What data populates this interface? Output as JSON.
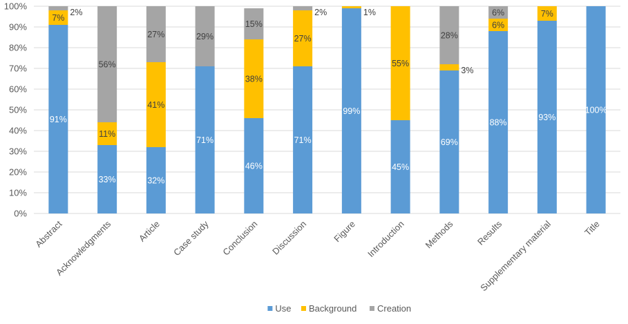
{
  "chart_data": {
    "type": "bar",
    "stacked": true,
    "percent_axis": true,
    "categories": [
      "Abstract",
      "Acknowledgments",
      "Article",
      "Case study",
      "Conclusion",
      "Discussion",
      "Figure",
      "Introduction",
      "Methods",
      "Results",
      "Supplementary material",
      "Title"
    ],
    "series": [
      {
        "name": "Use",
        "color": "#5B9BD5",
        "label_color": "#ffffff",
        "values": [
          91,
          33,
          32,
          71,
          46,
          71,
          99,
          45,
          69,
          88,
          93,
          100
        ],
        "labels": [
          "91%",
          "33%",
          "32%",
          "71%",
          "46%",
          "71%",
          "99%",
          "45%",
          "69%",
          "88%",
          "93%",
          "100%"
        ]
      },
      {
        "name": "Background",
        "color": "#FFC000",
        "label_color": "#404040",
        "values": [
          7,
          11,
          41,
          0,
          38,
          27,
          1,
          55,
          3,
          6,
          7,
          0
        ],
        "labels": [
          "7%",
          "11%",
          "41%",
          "",
          "38%",
          "27%",
          "1%",
          "55%",
          "3%",
          "6%",
          "7%",
          ""
        ]
      },
      {
        "name": "Creation",
        "color": "#A5A5A5",
        "label_color": "#404040",
        "values": [
          2,
          56,
          27,
          29,
          15,
          2,
          0,
          0,
          28,
          6,
          0,
          0
        ],
        "labels": [
          "2%",
          "56%",
          "27%",
          "29%",
          "15%",
          "2%",
          "",
          "",
          "28%",
          "6%",
          "",
          ""
        ]
      }
    ],
    "yticks": [
      "0%",
      "10%",
      "20%",
      "30%",
      "40%",
      "50%",
      "60%",
      "70%",
      "80%",
      "90%",
      "100%"
    ],
    "ylim": [
      0,
      100
    ],
    "grid": true,
    "gridline_color": "#D9D9D9",
    "legend_position": "bottom",
    "title": "",
    "xlabel": "",
    "ylabel": ""
  }
}
